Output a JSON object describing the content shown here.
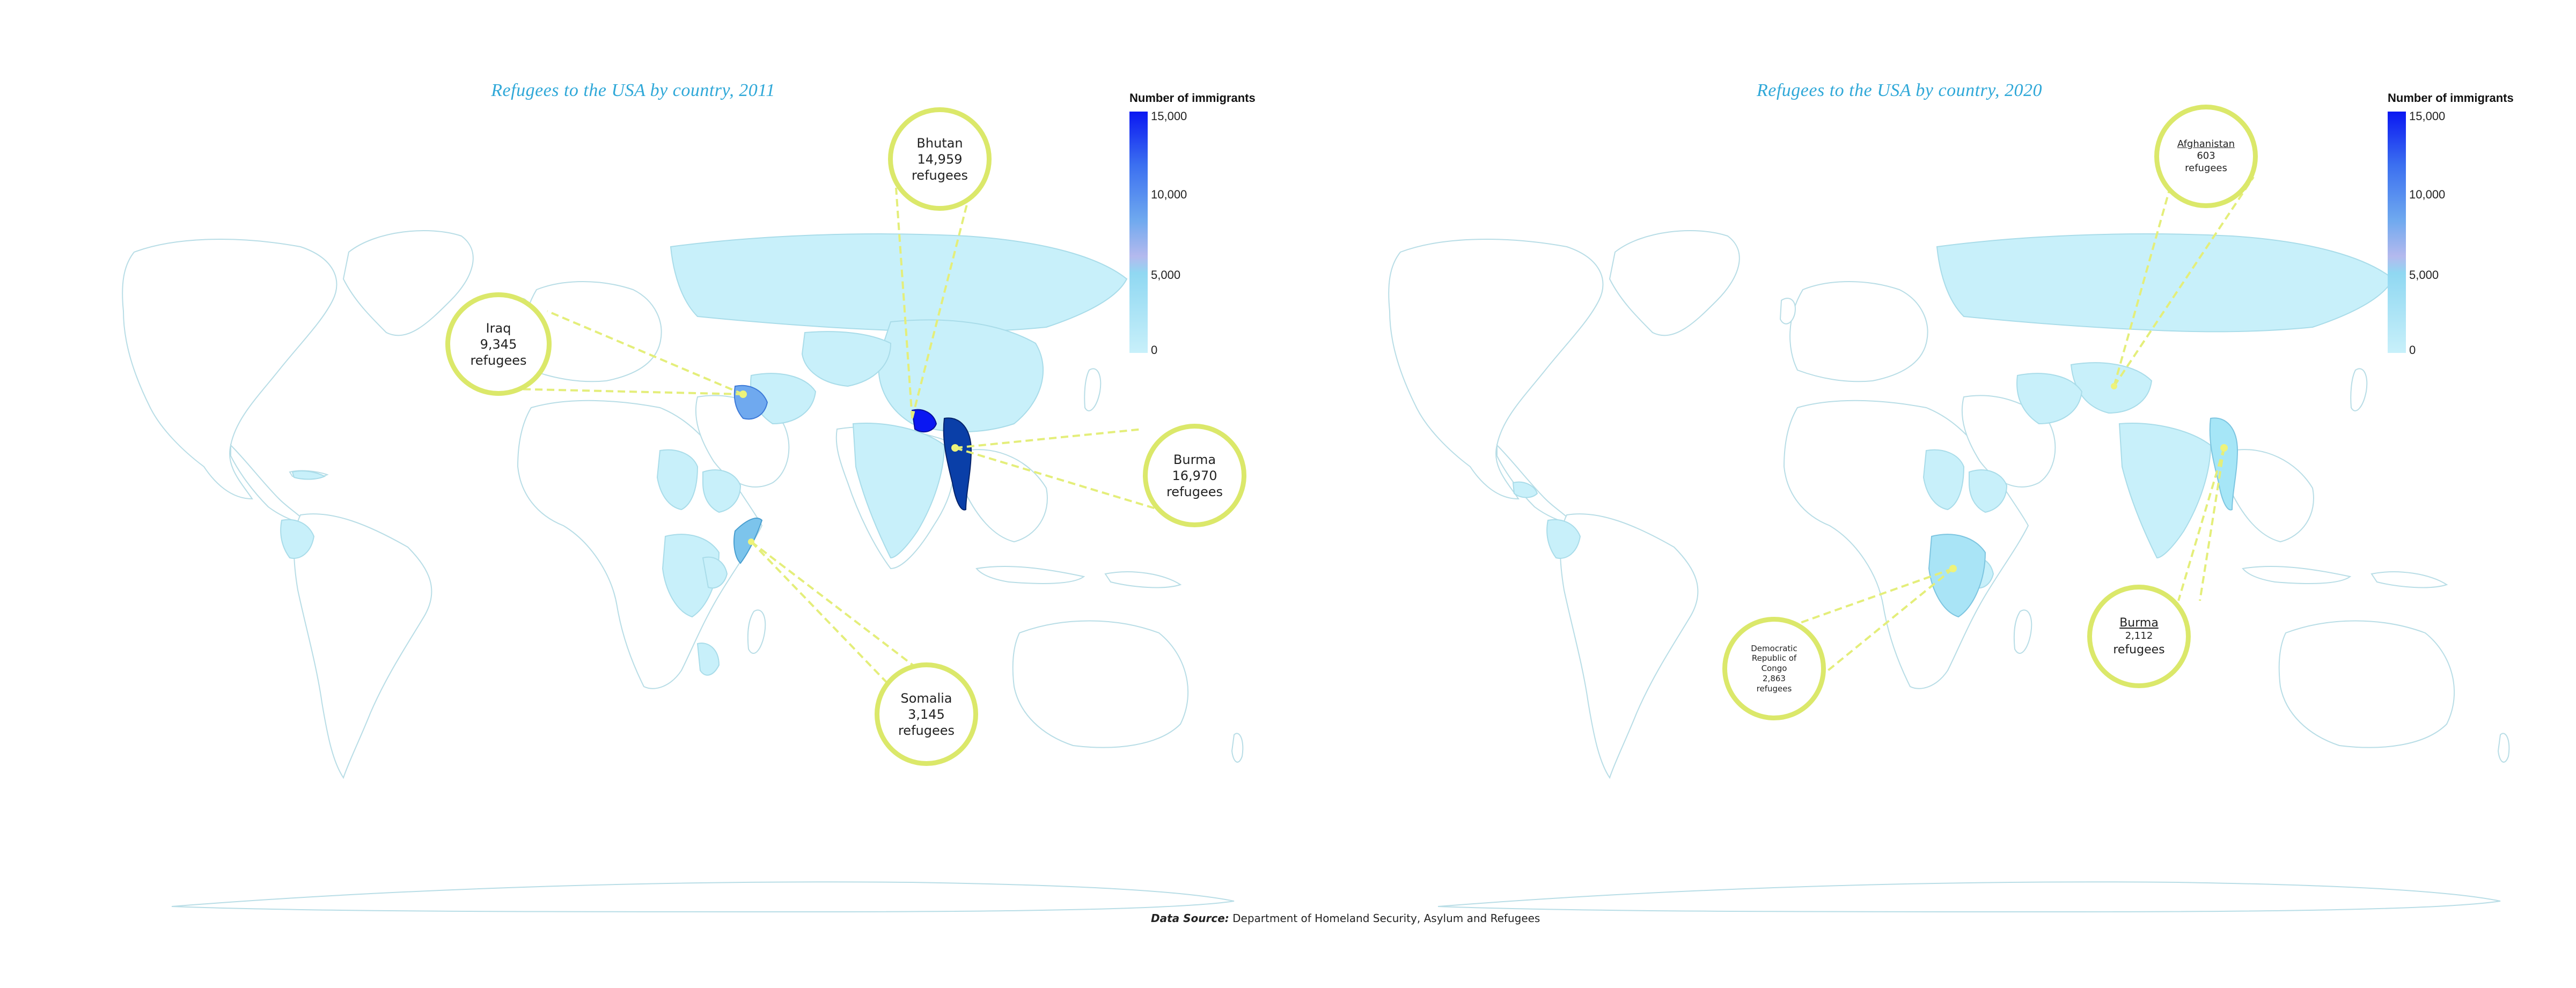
{
  "maps": [
    {
      "id": "2011",
      "title": "Refugees to the USA by country, 2011",
      "legend": {
        "title": "Number of immigrants",
        "ticks": [
          "15,000",
          "10,000",
          "5,000",
          "0"
        ],
        "scale_max": 15000,
        "colors": {
          "low": "#c8f0fa",
          "mid": "#6fa9ef",
          "high": "#0a17f2"
        }
      },
      "callouts": [
        {
          "country": "Bhutan",
          "value": "14,959",
          "unit": "refugees"
        },
        {
          "country": "Iraq",
          "value": "9,345",
          "unit": "refugees"
        },
        {
          "country": "Burma",
          "value": "16,970",
          "unit": "refugees"
        },
        {
          "country": "Somalia",
          "value": "3,145",
          "unit": "refugees"
        }
      ]
    },
    {
      "id": "2020",
      "title": "Refugees to the USA by country, 2020",
      "legend": {
        "title": "Number of immigrants",
        "ticks": [
          "15,000",
          "10,000",
          "5,000",
          "0"
        ],
        "scale_max": 15000,
        "colors": {
          "low": "#c8f0fa",
          "mid": "#6fa9ef",
          "high": "#0a17f2"
        }
      },
      "callouts": [
        {
          "country": "Afghanistan",
          "value": "603",
          "unit": "refugees"
        },
        {
          "country": "Democratic Republic of Congo",
          "value": "2,863",
          "unit": "refugees"
        },
        {
          "country": "Burma",
          "value": "2,112",
          "unit": "refugees"
        }
      ]
    }
  ],
  "footer": {
    "source_label": "Data Source:",
    "source_text": " Department of Homeland Security, Asylum and Refugees"
  },
  "colors": {
    "title": "#2fa8d8",
    "callout_ring": "#dbe86a",
    "country_outline": "#b8dde6",
    "light_fill": "#c8f0fa",
    "dark_fill": "#0a3fa8"
  }
}
